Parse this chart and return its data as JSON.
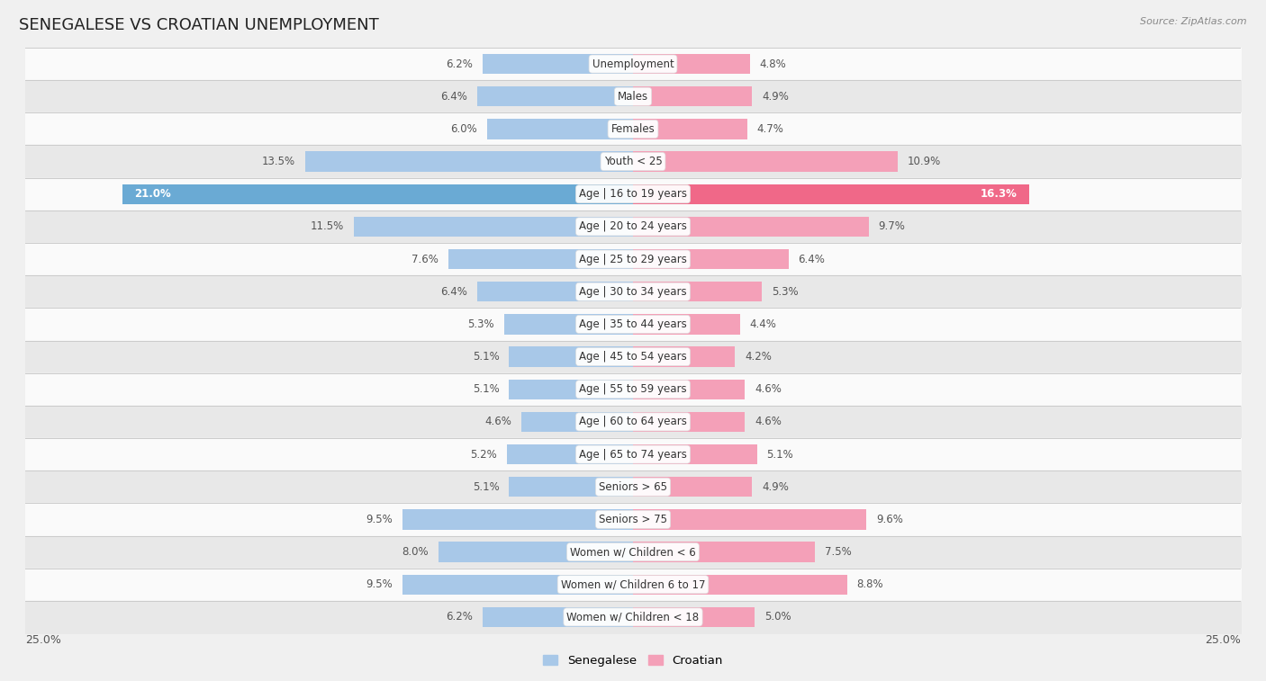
{
  "title": "SENEGALESE VS CROATIAN UNEMPLOYMENT",
  "source": "Source: ZipAtlas.com",
  "categories": [
    "Unemployment",
    "Males",
    "Females",
    "Youth < 25",
    "Age | 16 to 19 years",
    "Age | 20 to 24 years",
    "Age | 25 to 29 years",
    "Age | 30 to 34 years",
    "Age | 35 to 44 years",
    "Age | 45 to 54 years",
    "Age | 55 to 59 years",
    "Age | 60 to 64 years",
    "Age | 65 to 74 years",
    "Seniors > 65",
    "Seniors > 75",
    "Women w/ Children < 6",
    "Women w/ Children 6 to 17",
    "Women w/ Children < 18"
  ],
  "senegalese": [
    6.2,
    6.4,
    6.0,
    13.5,
    21.0,
    11.5,
    7.6,
    6.4,
    5.3,
    5.1,
    5.1,
    4.6,
    5.2,
    5.1,
    9.5,
    8.0,
    9.5,
    6.2
  ],
  "croatian": [
    4.8,
    4.9,
    4.7,
    10.9,
    16.3,
    9.7,
    6.4,
    5.3,
    4.4,
    4.2,
    4.6,
    4.6,
    5.1,
    4.9,
    9.6,
    7.5,
    8.8,
    5.0
  ],
  "senegalese_color": "#a8c8e8",
  "croatian_color": "#f4a0b8",
  "senegalese_highlight_color": "#6aaad4",
  "croatian_highlight_color": "#f06888",
  "highlight_row": 4,
  "xlim": 25.0,
  "bar_height": 0.62,
  "bg_color": "#f0f0f0",
  "row_color_even": "#fafafa",
  "row_color_odd": "#e8e8e8",
  "legend_senegalese": "Senegalese",
  "legend_croatian": "Croatian",
  "title_fontsize": 13,
  "label_fontsize": 8.5,
  "value_fontsize": 8.5
}
